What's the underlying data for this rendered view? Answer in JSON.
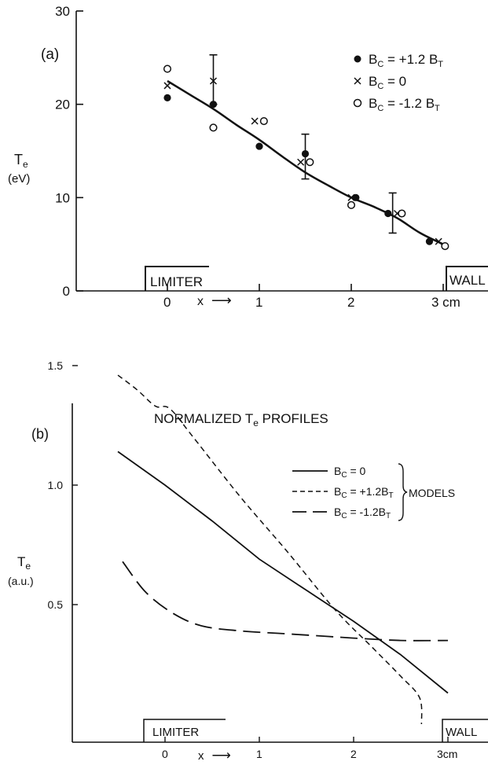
{
  "chart_data": [
    {
      "type": "scatter",
      "panel_label": "(a)",
      "title": "",
      "ylabel": "Te",
      "ylabel_unit": "(eV)",
      "xlabel": "x",
      "x_unit": "cm",
      "xlim": [
        -0.85,
        3.1
      ],
      "ylim": [
        0,
        30
      ],
      "x_ticks": [
        "0",
        "1",
        "2",
        "3 cm"
      ],
      "x_tick_values": [
        0,
        1,
        2,
        3
      ],
      "y_ticks": [
        "0",
        "10",
        "20",
        "30"
      ],
      "y_tick_values": [
        0,
        10,
        20,
        30
      ],
      "legend_position": "top-right",
      "series": [
        {
          "name": "B_C = +1.2 B_T",
          "name_display": "● Bc = +1.2BT",
          "marker": "filled-circle",
          "x": [
            0,
            0.5,
            1.0,
            1.5,
            2.05,
            2.4,
            2.85
          ],
          "y": [
            20.7,
            20.0,
            15.5,
            14.7,
            10.0,
            8.3,
            5.3
          ]
        },
        {
          "name": "B_C = 0",
          "name_display": "× Bc = 0",
          "marker": "cross",
          "x": [
            0,
            0.5,
            0.95,
            1.45,
            2.0,
            2.5,
            2.95
          ],
          "y": [
            22.0,
            22.5,
            18.2,
            13.8,
            10.0,
            8.3,
            5.3
          ]
        },
        {
          "name": "B_C = -1.2 B_T",
          "name_display": "○ Bc = -1.2BT",
          "marker": "open-circle",
          "x": [
            0,
            0.5,
            1.05,
            1.55,
            2.0,
            2.55,
            3.02
          ],
          "y": [
            23.8,
            17.5,
            18.2,
            13.8,
            9.2,
            8.3,
            4.8
          ]
        }
      ],
      "error_bars": [
        {
          "x": 0.5,
          "low": 20.0,
          "high": 25.3
        },
        {
          "x": 1.5,
          "low": 12.0,
          "high": 16.8
        },
        {
          "x": 2.45,
          "low": 6.2,
          "high": 10.5
        }
      ],
      "fit_curve": {
        "x": [
          0,
          0.25,
          0.5,
          0.75,
          1.0,
          1.25,
          1.5,
          1.75,
          2.0,
          2.25,
          2.5,
          2.75,
          3.0
        ],
        "y": [
          22.5,
          21.0,
          19.5,
          17.8,
          16.2,
          14.4,
          12.7,
          11.3,
          10.0,
          9.0,
          7.8,
          6.2,
          5.0
        ]
      },
      "annotations": [
        "LIMITER",
        "WALL"
      ]
    },
    {
      "type": "line",
      "panel_label": "(b)",
      "title": "NORMALIZED Te PROFILES",
      "ylabel": "Te",
      "ylabel_unit": "(a.u.)",
      "xlabel": "x",
      "x_unit": "cm",
      "xlim": [
        -0.85,
        3.1
      ],
      "ylim": [
        0,
        1.65
      ],
      "x_ticks": [
        "0",
        "1",
        "2",
        "3cm"
      ],
      "x_tick_values": [
        0,
        1,
        2,
        3
      ],
      "y_ticks": [
        "0.5",
        "1.0",
        "1.5"
      ],
      "y_tick_values": [
        0.5,
        1.0,
        1.5
      ],
      "legend_group_label": "MODELS",
      "legend_position": "top-right",
      "series": [
        {
          "name": "B_C = 0",
          "name_display": "Bc = 0",
          "style": "solid",
          "x": [
            -0.5,
            0,
            0.5,
            1.0,
            1.5,
            2.0,
            2.5,
            3.0
          ],
          "y": [
            1.14,
            1.0,
            0.85,
            0.69,
            0.56,
            0.43,
            0.29,
            0.13
          ]
        },
        {
          "name": "B_C = +1.2 B_T",
          "name_display": "Bc = +1.2BT",
          "style": "short-dash",
          "x": [
            -0.5,
            -0.3,
            -0.1,
            0.05,
            0.3,
            0.8,
            1.3,
            1.8,
            2.2,
            2.5,
            2.7,
            2.72
          ],
          "y": [
            1.46,
            1.4,
            1.33,
            1.32,
            1.2,
            0.95,
            0.72,
            0.48,
            0.32,
            0.2,
            0.11,
            0.0
          ]
        },
        {
          "name": "B_C = -1.2 B_T",
          "name_display": "Bc = -1.2BT",
          "style": "long-dash",
          "x": [
            -0.45,
            -0.2,
            0.1,
            0.4,
            0.8,
            1.2,
            1.6,
            2.0,
            2.5,
            3.0
          ],
          "y": [
            0.68,
            0.55,
            0.46,
            0.41,
            0.39,
            0.38,
            0.37,
            0.36,
            0.35,
            0.35
          ]
        }
      ],
      "annotations": [
        "LIMITER",
        "WALL"
      ]
    }
  ],
  "legend_a": {
    "s1_prefix": "B",
    "s1_sub": "C",
    "s1_rest": " = +1.2 B",
    "s1_sub2": "T",
    "s2_prefix": "B",
    "s2_sub": "C",
    "s2_rest": " = 0",
    "s3_prefix": "B",
    "s3_sub": "C",
    "s3_rest": " = -1.2 B",
    "s3_sub2": "T"
  },
  "legend_b": {
    "s1_prefix": "B",
    "s1_sub": "C",
    "s1_rest": " = 0",
    "s2_prefix": "B",
    "s2_sub": "C",
    "s2_rest": " = +1.2B",
    "s2_sub2": "T",
    "s3_prefix": "B",
    "s3_sub": "C",
    "s3_rest": " = -1.2B",
    "s3_sub2": "T",
    "group": "MODELS"
  },
  "title_b_main": "NORMALIZED T",
  "title_b_sub": "e",
  "title_b_tail": "  PROFILES",
  "ylabel_main": "T",
  "ylabel_sub": "e",
  "limiter_label": "LIMITER",
  "wall_label": "WALL",
  "x_arrow_label": "x",
  "x_arrow_glyph": "⟶"
}
